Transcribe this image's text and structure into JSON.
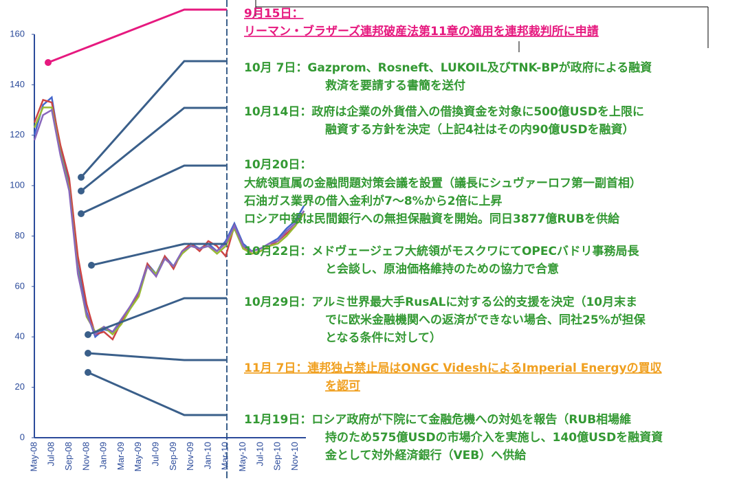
{
  "chart_data": {
    "type": "line",
    "categories": [
      "May-08",
      null,
      "Jul-08",
      null,
      "Sep-08",
      null,
      "Nov-08",
      null,
      "Jan-09",
      null,
      "Mar-09",
      null,
      "May-09",
      null,
      "Jul-09",
      null,
      "Sep-09",
      null,
      "Nov-09",
      null,
      "Jan-10",
      null,
      "Mar-10",
      null,
      "May-10",
      null,
      "Jul-10",
      null,
      "Sep-10",
      null,
      "Nov-10",
      null
    ],
    "series": [
      {
        "color": "#4466cc",
        "values": [
          120,
          132,
          135,
          114,
          101,
          68,
          50,
          40,
          43,
          42,
          46,
          51,
          58,
          69,
          65,
          72,
          68,
          74,
          77,
          75,
          77,
          74,
          78,
          85,
          77,
          74,
          75,
          77,
          79,
          83,
          86,
          92
        ]
      },
      {
        "color": "#cc4444",
        "values": [
          125,
          134,
          133,
          116,
          103,
          72,
          53,
          41,
          42,
          39,
          46,
          52,
          57,
          69,
          64,
          72,
          67,
          74,
          77,
          74,
          78,
          76,
          72,
          84,
          76,
          73,
          74,
          76,
          78,
          81,
          84,
          90
        ]
      },
      {
        "color": "#99bb33",
        "values": [
          123,
          131,
          131,
          113,
          99,
          66,
          48,
          42,
          44,
          41,
          45,
          51,
          56,
          68,
          65,
          71,
          68,
          73,
          76,
          75,
          76,
          73,
          76,
          83,
          75,
          73,
          74,
          76,
          77,
          80,
          84,
          89
        ]
      },
      {
        "color": "#8866bb",
        "values": [
          118,
          128,
          130,
          112,
          98,
          65,
          49,
          41,
          44,
          42,
          47,
          52,
          58,
          68,
          64,
          71,
          68,
          74,
          76,
          75,
          76,
          74,
          77,
          84,
          76,
          74,
          75,
          77,
          78,
          82,
          85,
          90
        ]
      }
    ],
    "ylim": [
      0,
      160
    ],
    "yticks": [
      0,
      20,
      40,
      60,
      80,
      100,
      120,
      140,
      160
    ],
    "annotations": [
      {
        "color": "#e6197f",
        "underline": true,
        "lines": [
          "9月15日：",
          "リーマン・ブラザーズ連邦破産法第11章の適用を連邦裁判所に申請"
        ]
      },
      {
        "color": "#339933",
        "lines": [
          "10月 7日：Gazprom、Rosneft、LUKOIL及びTNK-BPが政府による融資",
          "救済を要請する書簡を送付"
        ]
      },
      {
        "color": "#339933",
        "lines": [
          "10月14日：政府は企業の外貨借入の借換資金を対象に500億USDを上限に",
          "融資する方針を決定（上記4社はその内90億USDを融資）"
        ]
      },
      {
        "color": "#339933",
        "lines": [
          "10月20日：",
          "大統領直属の金融問題対策会議を設置（議長にシュヴァーロフ第一副首相）",
          "石油ガス業界の借入金利が7～8%から2倍に上昇",
          "ロシア中銀は民間銀行への無担保融資を開始。同日3877億RUBを供給"
        ]
      },
      {
        "color": "#339933",
        "lines": [
          "10月22日：メドヴェージェフ大統領がモスクワにてOPECバドリ事務局長",
          "と会談し、原油価格維持のための協力で合意"
        ]
      },
      {
        "color": "#339933",
        "lines": [
          "10月29日：アルミ世界最大手RusALに対する公的支援を決定（10月末ま",
          "でに欧米金融機関への返済ができない場合、同社25%が担保",
          "となる条件に対して）"
        ]
      },
      {
        "color": "#f0a020",
        "underline": true,
        "lines": [
          "11月 7日：連邦独占禁止局はONGC VideshによるImperial Energyの買収",
          "を認可"
        ]
      },
      {
        "color": "#339933",
        "lines": [
          "11月19日：ロシア政府が下院にて金融危機への対処を報告（RUB相場維",
          "持のため575億USDの市場介入を実施し、140億USDを融資資",
          "金として対外経済銀行（VEB）へ供給"
        ]
      }
    ]
  }
}
